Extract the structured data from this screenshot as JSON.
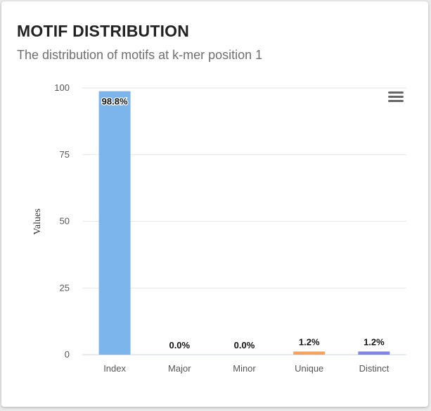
{
  "card": {
    "title": "MOTIF DISTRIBUTION",
    "subtitle": "The distribution of motifs at k-mer position 1",
    "menu_icon": "hamburger-menu-icon"
  },
  "chart_data": {
    "type": "bar",
    "categories": [
      "Index",
      "Major",
      "Minor",
      "Unique",
      "Distinct"
    ],
    "values": [
      98.8,
      0.0,
      0.0,
      1.2,
      1.2
    ],
    "data_labels": [
      "98.8%",
      "0.0%",
      "0.0%",
      "1.2%",
      "1.2%"
    ],
    "colors": [
      "#7cb5ec",
      "#434348",
      "#90ed7d",
      "#f7a35c",
      "#8085e9"
    ],
    "ylabel": "Values",
    "xlabel": "",
    "ylim": [
      0,
      100
    ],
    "yticks": [
      0,
      25,
      50,
      75,
      100
    ],
    "grid": true,
    "legend": "none"
  }
}
